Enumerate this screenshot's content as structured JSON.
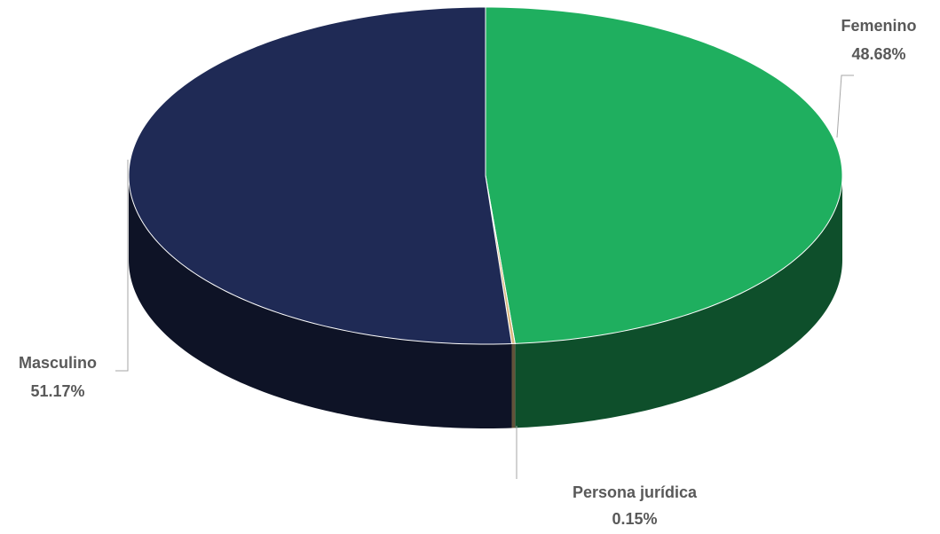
{
  "chart_data": {
    "type": "pie",
    "categories": [
      "Femenino",
      "Persona jurídica",
      "Masculino"
    ],
    "values": [
      48.68,
      0.15,
      51.17
    ],
    "value_labels": [
      "48.68%",
      "0.15%",
      "51.17%"
    ],
    "colors": [
      "#1faf5f",
      "#d9b77e",
      "#1f2a55"
    ]
  }
}
